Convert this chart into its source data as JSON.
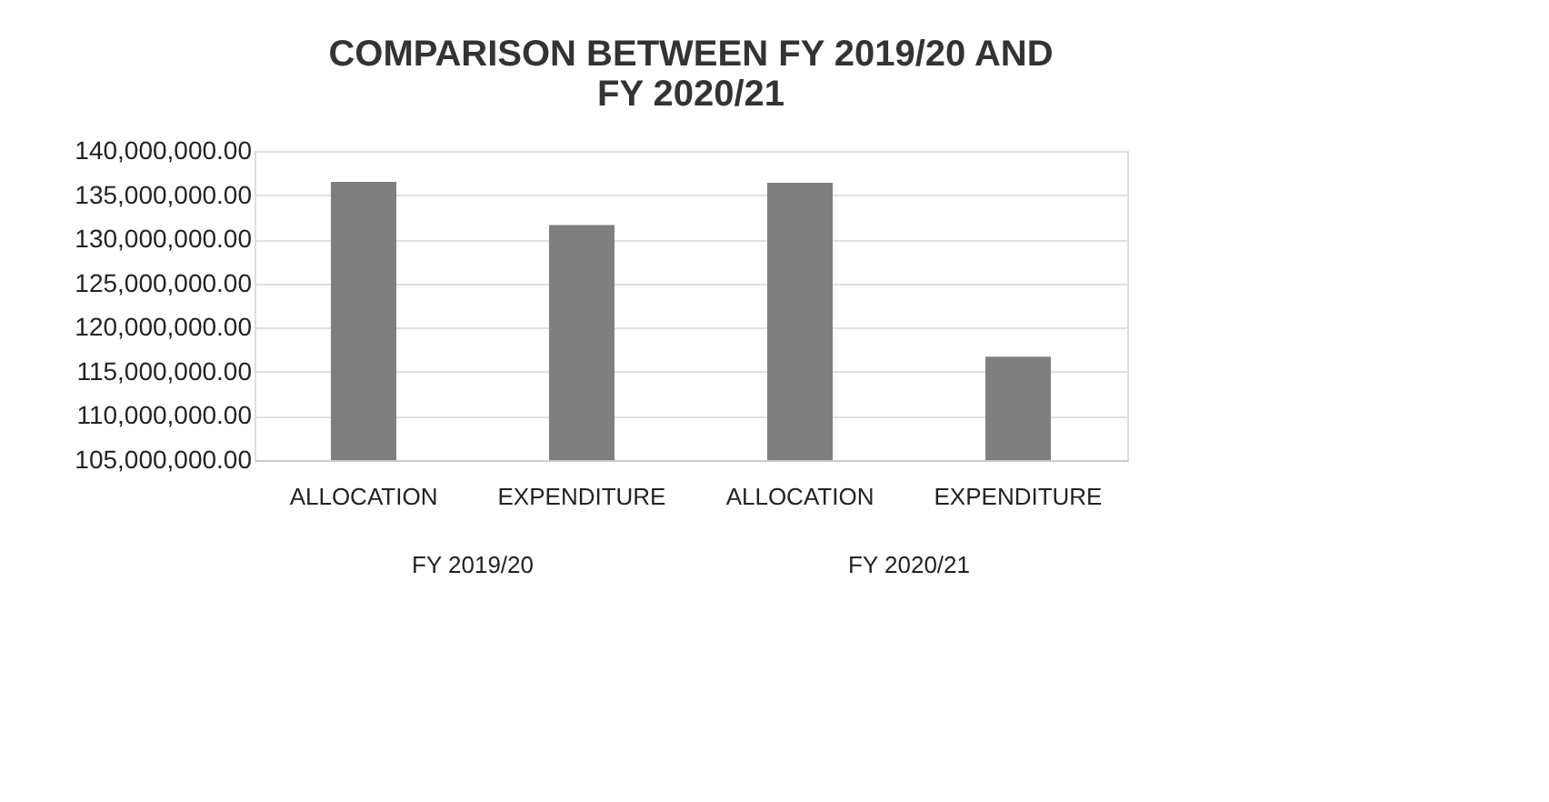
{
  "chart_data": {
    "type": "bar",
    "title": [
      "COMPARISON BETWEEN FY 2019/20 AND",
      "FY 2020/21"
    ],
    "categories": [
      "ALLOCATION",
      "EXPENDITURE",
      "ALLOCATION",
      "EXPENDITURE"
    ],
    "values": [
      136500000,
      131600000,
      136400000,
      116700000
    ],
    "color": "#7f7f7f",
    "ylim": [
      105000000,
      140000000
    ],
    "yticks": [
      {
        "value": 105000000,
        "label": "105,000,000.00"
      },
      {
        "value": 110000000,
        "label": "110,000,000.00"
      },
      {
        "value": 115000000,
        "label": "115,000,000.00"
      },
      {
        "value": 120000000,
        "label": "120,000,000.00"
      },
      {
        "value": 125000000,
        "label": "125,000,000.00"
      },
      {
        "value": 130000000,
        "label": "130,000,000.00"
      },
      {
        "value": 135000000,
        "label": "135,000,000.00"
      },
      {
        "value": 140000000,
        "label": "140,000,000.00"
      }
    ],
    "annotations": [
      "FY 2019/20",
      "FY 2020/21"
    ],
    "grid": "y"
  }
}
